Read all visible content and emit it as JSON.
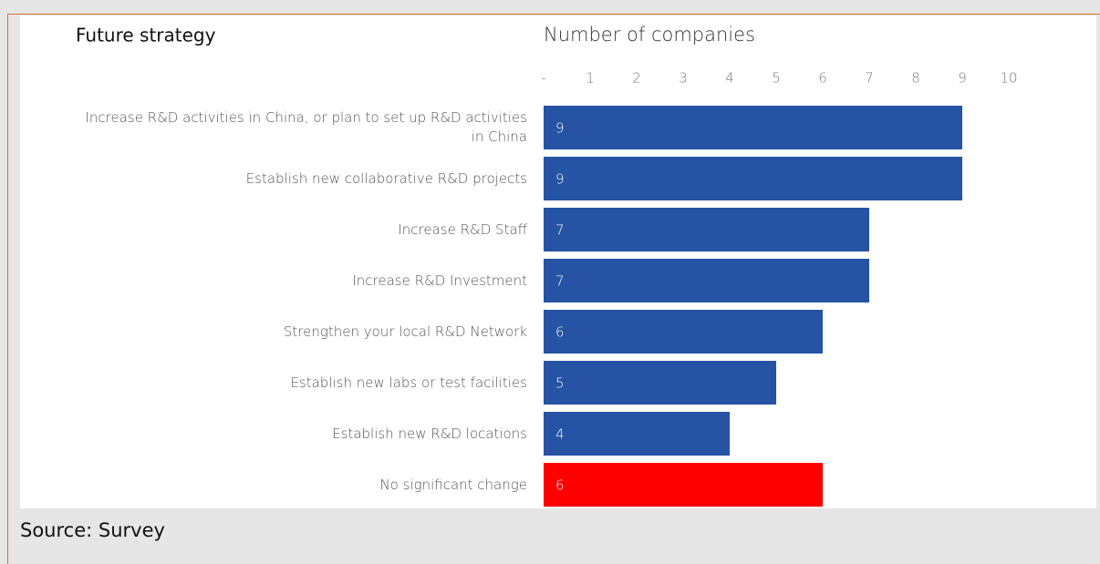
{
  "chart_data": {
    "type": "hbar",
    "title": "Future strategy",
    "xlabel": "Number of companies",
    "categories": [
      "Increase R&D activities in China, or plan to set up R&D activities in China",
      "Establish new collaborative R&D projects",
      "Increase R&D Staff",
      "Increase R&D Investment",
      "Strengthen your local R&D Network",
      "Establish new labs or test facilities",
      "Establish new R&D locations",
      "No significant change"
    ],
    "values": [
      9,
      9,
      7,
      7,
      6,
      5,
      4,
      6
    ],
    "colors": [
      "#2653a4",
      "#2653a4",
      "#2653a4",
      "#2653a4",
      "#2653a4",
      "#2653a4",
      "#2653a4",
      "#ff0000"
    ],
    "xlim": [
      0,
      10
    ],
    "xticks": [
      {
        "value": 0,
        "label": "-"
      },
      1,
      2,
      3,
      4,
      5,
      6,
      7,
      8,
      9,
      10
    ],
    "grid": false
  },
  "source": "Source: Survey"
}
